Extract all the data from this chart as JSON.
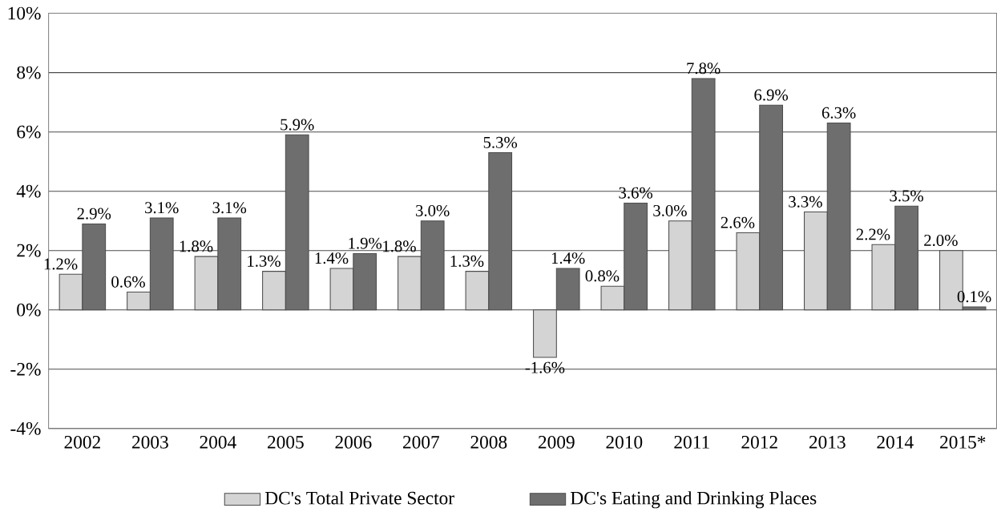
{
  "chart_data": {
    "type": "bar",
    "categories": [
      "2002",
      "2003",
      "2004",
      "2005",
      "2006",
      "2007",
      "2008",
      "2009",
      "2010",
      "2011",
      "2012",
      "2013",
      "2014",
      "2015*"
    ],
    "series": [
      {
        "name": "DC's Total Private Sector",
        "color": "#d4d4d4",
        "values": [
          1.2,
          0.6,
          1.8,
          1.3,
          1.4,
          1.8,
          1.3,
          -1.6,
          0.8,
          3.0,
          2.6,
          3.3,
          2.2,
          2.0
        ],
        "value_labels": [
          "1.2%",
          "0.6%",
          "1.8%",
          "1.3%",
          "1.4%",
          "1.8%",
          "1.3%",
          "-1.6%",
          "0.8%",
          "3.0%",
          "2.6%",
          "3.3%",
          "2.2%",
          "2.0%"
        ]
      },
      {
        "name": "DC's Eating and Drinking Places",
        "color": "#6e6e6e",
        "values": [
          2.9,
          3.1,
          3.1,
          5.9,
          1.9,
          3.0,
          5.3,
          1.4,
          3.6,
          7.8,
          6.9,
          6.3,
          3.5,
          0.1
        ],
        "value_labels": [
          "2.9%",
          "3.1%",
          "3.1%",
          "5.9%",
          "1.9%",
          "3.0%",
          "5.3%",
          "1.4%",
          "3.6%",
          "7.8%",
          "6.9%",
          "6.3%",
          "3.5%",
          "0.1%"
        ]
      }
    ],
    "ylim": [
      -4,
      10
    ],
    "yticks": [
      {
        "value": -4,
        "label": "-4%"
      },
      {
        "value": -2,
        "label": "-2%"
      },
      {
        "value": 0,
        "label": "0%"
      },
      {
        "value": 2,
        "label": "2%"
      },
      {
        "value": 4,
        "label": "4%"
      },
      {
        "value": 6,
        "label": "6%"
      },
      {
        "value": 8,
        "label": "8%"
      },
      {
        "value": 10,
        "label": "10%"
      }
    ],
    "grid": "y",
    "legend": "bottom"
  }
}
